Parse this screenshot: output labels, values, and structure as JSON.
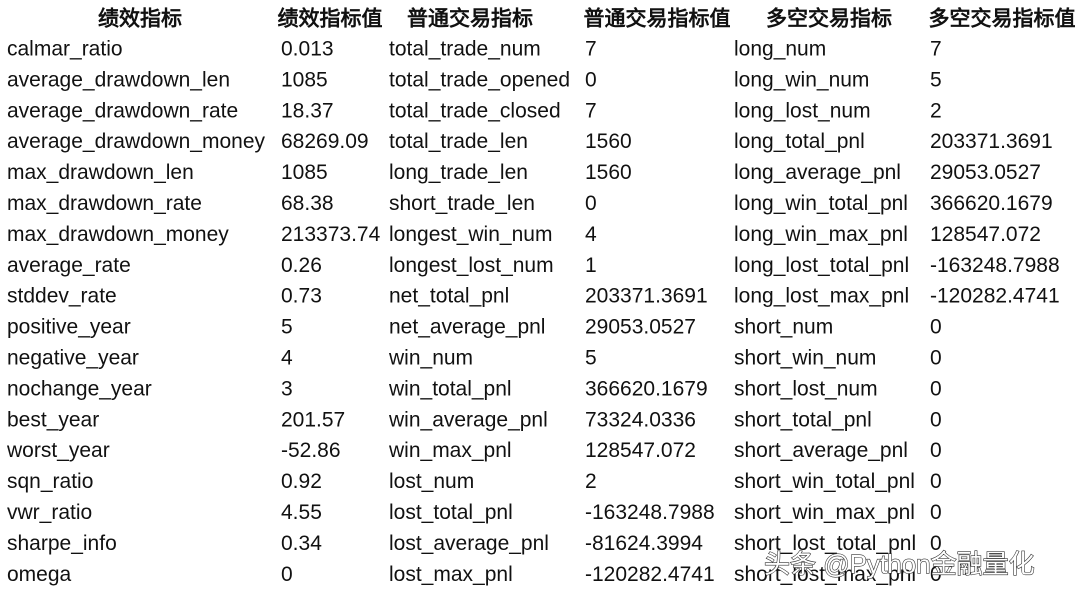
{
  "table": {
    "header": [
      "绩效指标",
      "绩效指标值",
      "普通交易指标",
      "普通交易指标值",
      "多空交易指标",
      "多空交易指标值"
    ],
    "rows": [
      [
        "calmar_ratio",
        "0.013",
        "total_trade_num",
        "7",
        "long_num",
        "7"
      ],
      [
        "average_drawdown_len",
        "1085",
        "total_trade_opened",
        "0",
        "long_win_num",
        "5"
      ],
      [
        "average_drawdown_rate",
        "18.37",
        "total_trade_closed",
        "7",
        "long_lost_num",
        "2"
      ],
      [
        "average_drawdown_money",
        "68269.09",
        "total_trade_len",
        "1560",
        "long_total_pnl",
        "203371.3691"
      ],
      [
        "max_drawdown_len",
        "1085",
        "long_trade_len",
        "1560",
        "long_average_pnl",
        "29053.0527"
      ],
      [
        "max_drawdown_rate",
        "68.38",
        "short_trade_len",
        "0",
        "long_win_total_pnl",
        "366620.1679"
      ],
      [
        "max_drawdown_money",
        "213373.74",
        "longest_win_num",
        "4",
        "long_win_max_pnl",
        "128547.072"
      ],
      [
        "average_rate",
        "0.26",
        "longest_lost_num",
        "1",
        "long_lost_total_pnl",
        "-163248.7988"
      ],
      [
        "stddev_rate",
        "0.73",
        "net_total_pnl",
        "203371.3691",
        "long_lost_max_pnl",
        "-120282.4741"
      ],
      [
        "positive_year",
        "5",
        "net_average_pnl",
        "29053.0527",
        "short_num",
        "0"
      ],
      [
        "negative_year",
        "4",
        "win_num",
        "5",
        "short_win_num",
        "0"
      ],
      [
        "nochange_year",
        "3",
        "win_total_pnl",
        "366620.1679",
        "short_lost_num",
        "0"
      ],
      [
        "best_year",
        "201.57",
        "win_average_pnl",
        "73324.0336",
        "short_total_pnl",
        "0"
      ],
      [
        "worst_year",
        "-52.86",
        "win_max_pnl",
        "128547.072",
        "short_average_pnl",
        "0"
      ],
      [
        "sqn_ratio",
        "0.92",
        "lost_num",
        "2",
        "short_win_total_pnl",
        "0"
      ],
      [
        "vwr_ratio",
        "4.55",
        "lost_total_pnl",
        "-163248.7988",
        "short_win_max_pnl",
        "0"
      ],
      [
        "sharpe_info",
        "0.34",
        "lost_average_pnl",
        "-81624.3994",
        "short_lost_total_pnl",
        "0"
      ],
      [
        "omega",
        "0",
        "lost_max_pnl",
        "-120282.4741",
        "short_lost_max_pnl",
        "0"
      ]
    ]
  },
  "watermark": "头条 @Python金融量化"
}
